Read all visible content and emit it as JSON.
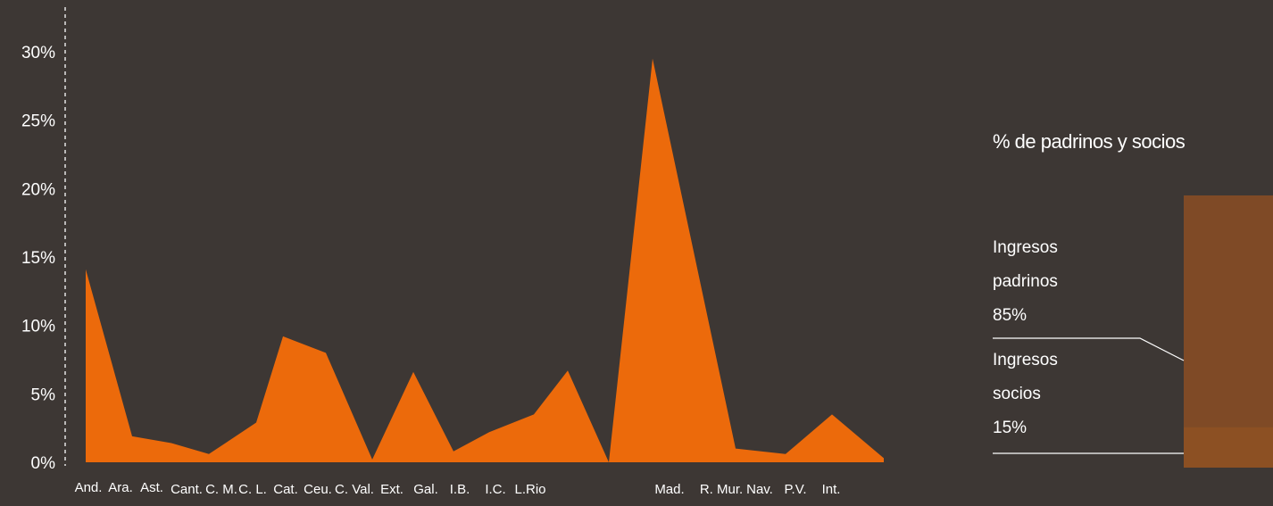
{
  "colors": {
    "background": "#3d3734",
    "area_fill": "#ec6a0b",
    "bar_padrinos": "#7f4a26",
    "bar_socios": "#8c5023",
    "text": "#ffffff"
  },
  "chart_data": [
    {
      "type": "area",
      "categories": [
        "And.",
        "Ara.",
        "Ast.",
        "Cant.",
        "C. M.",
        "C. L.",
        "Cat.",
        "Ceu.",
        "C. Val.",
        "Ext.",
        "Gal.",
        "I.B.",
        "I.C.",
        "L.Rio",
        "Mad.",
        "R. Mur.",
        "Nav.",
        "P.V.",
        "Int."
      ],
      "series": [
        {
          "values": [
            14.1,
            1.9,
            1.4,
            0.6,
            2.9,
            9.2,
            8.0,
            0.2,
            6.6,
            0.8,
            2.2,
            3.5,
            6.7,
            0,
            29.5,
            1.0,
            0.6,
            3.5,
            0.3
          ]
        }
      ],
      "yticks": [
        "0%",
        "5%",
        "10%",
        "15%",
        "20%",
        "25%",
        "30%"
      ],
      "ylim": [
        0,
        30
      ],
      "grid": false,
      "xlabel": "",
      "ylabel": ""
    },
    {
      "type": "bar",
      "title": "% de padrinos y socios",
      "stacked": true,
      "segments": [
        {
          "label_lines": [
            "Ingresos",
            "padrinos",
            "85%"
          ],
          "value": 85
        },
        {
          "label_lines": [
            "Ingresos",
            "socios",
            "15%"
          ],
          "value": 15
        }
      ]
    }
  ]
}
